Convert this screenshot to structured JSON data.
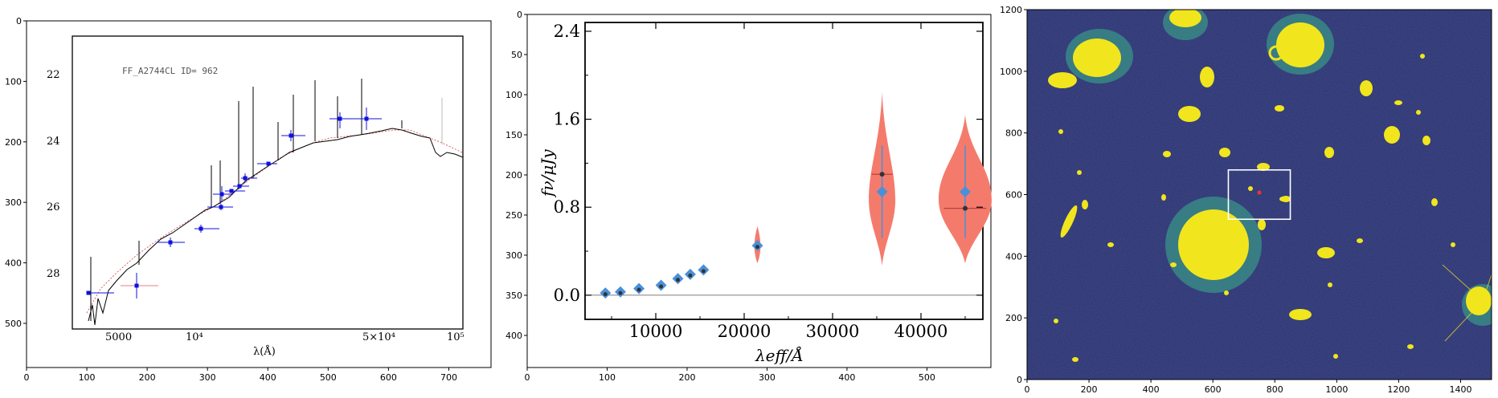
{
  "chart_data": [
    {
      "type": "line",
      "outer_axes": {
        "x_ticks": [
          0,
          100,
          200,
          300,
          400,
          500,
          600,
          700
        ],
        "y_ticks": [
          0,
          100,
          200,
          300,
          400,
          500
        ],
        "xlim": [
          0,
          770
        ],
        "ylim": [
          0,
          573
        ]
      },
      "inner_plot": {
        "label": "FF_A2744CL ID= 962",
        "x_tick_labels": [
          "5000",
          "10⁴",
          "5×10⁴",
          "10⁵"
        ],
        "xlabel": "λ(Å)",
        "y_tick_labels": [
          "22",
          "24",
          "26",
          "28"
        ],
        "colors": {
          "spectrum": "#000000",
          "model": "#e05050",
          "photometry": "#1010e0"
        }
      }
    },
    {
      "type": "scatter",
      "outer_axes": {
        "x_ticks": [
          0,
          100,
          200,
          300,
          400,
          500
        ],
        "y_ticks": [
          0,
          50,
          100,
          150,
          200,
          250,
          300,
          350,
          400
        ],
        "xlim": [
          0,
          580
        ],
        "ylim": [
          0,
          440
        ]
      },
      "inner_plot": {
        "xlabel": "λeff/Å",
        "ylabel": "fν/μJy",
        "x_ticks": [
          10000,
          20000,
          30000,
          40000
        ],
        "y_ticks": [
          "0.0",
          "0.8",
          "1.6",
          "2.4"
        ],
        "xlim": [
          2000,
          47000
        ],
        "ylim": [
          -0.22,
          2.48
        ],
        "points": [
          {
            "x": 4300,
            "y": 0.02
          },
          {
            "x": 6000,
            "y": 0.03
          },
          {
            "x": 8100,
            "y": 0.06
          },
          {
            "x": 10600,
            "y": 0.09
          },
          {
            "x": 12500,
            "y": 0.15
          },
          {
            "x": 13900,
            "y": 0.19
          },
          {
            "x": 15400,
            "y": 0.23
          },
          {
            "x": 21500,
            "y": 0.45
          }
        ],
        "violins": [
          {
            "x": 35600,
            "center": 0.94,
            "median": 1.1,
            "low": 0.27,
            "high": 1.85,
            "width": 1500
          },
          {
            "x": 45000,
            "center": 0.94,
            "median": 0.79,
            "low": 0.29,
            "high": 1.64,
            "width": 3000
          }
        ],
        "colors": {
          "point": "#4a90d9",
          "violin": "#f47b6c",
          "median": "#333333"
        }
      }
    },
    {
      "type": "heatmap",
      "outer_axes": {
        "x_ticks": [
          0,
          200,
          400,
          600,
          800,
          1000,
          1200,
          1400
        ],
        "y_ticks": [
          0,
          200,
          400,
          600,
          800,
          1000,
          1200
        ],
        "xlim": [
          0,
          1500
        ],
        "ylim": [
          0,
          1200
        ]
      },
      "selection_box": {
        "x0": 650,
        "y0": 520,
        "x1": 850,
        "y1": 680
      },
      "colors": {
        "background": "#2a2c6c",
        "bright": "#f1e51d",
        "mid": "#3ba78a"
      }
    }
  ]
}
